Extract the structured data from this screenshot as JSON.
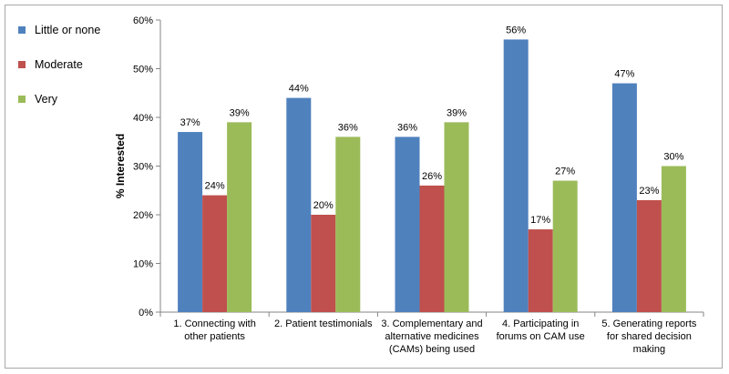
{
  "chart_data": {
    "type": "bar",
    "title": "",
    "xlabel": "",
    "ylabel": "% Interested",
    "ylim": [
      0,
      60
    ],
    "yticks": [
      "0%",
      "10%",
      "20%",
      "30%",
      "40%",
      "50%",
      "60%"
    ],
    "grid": false,
    "legend_position": "top-left",
    "categories": [
      [
        "1. Connecting with",
        "other patients"
      ],
      [
        "2. Patient testimonials"
      ],
      [
        "3. Complementary and",
        "alternative medicines",
        "(CAMs) being used"
      ],
      [
        "4. Participating in",
        "forums on CAM use"
      ],
      [
        "5. Generating reports",
        "for shared decision",
        "making"
      ]
    ],
    "series": [
      {
        "name": "Little or none",
        "color": "#4f81bd",
        "values": [
          37,
          44,
          36,
          56,
          47
        ],
        "labels": [
          "37%",
          "44%",
          "36%",
          "56%",
          "47%"
        ]
      },
      {
        "name": "Moderate",
        "color": "#c0504d",
        "values": [
          24,
          20,
          26,
          17,
          23
        ],
        "labels": [
          "24%",
          "20%",
          "26%",
          "17%",
          "23%"
        ]
      },
      {
        "name": "Very",
        "color": "#9bbb59",
        "values": [
          39,
          36,
          39,
          27,
          30
        ],
        "labels": [
          "39%",
          "36%",
          "39%",
          "27%",
          "30%"
        ]
      }
    ]
  }
}
